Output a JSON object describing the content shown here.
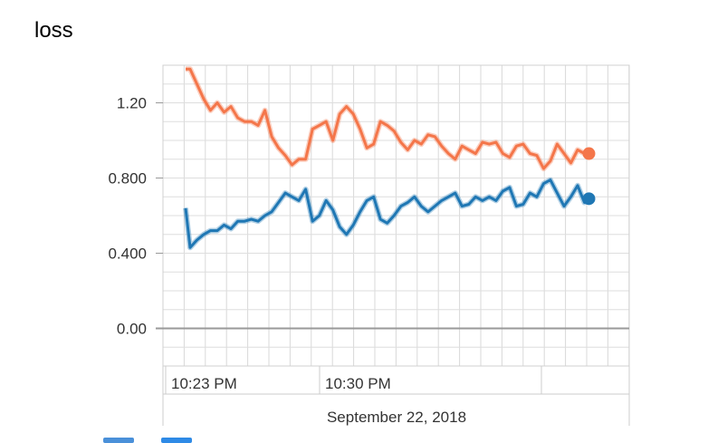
{
  "chart_data": {
    "type": "line",
    "title": "loss",
    "xlabel": "",
    "ylabel": "",
    "x_tick_labels": [
      "10:23 PM",
      "10:30 PM"
    ],
    "date_label": "September 22, 2018",
    "y_tick_labels": [
      "0.00",
      "0.400",
      "0.800",
      "1.20"
    ],
    "ylim": [
      -0.2,
      1.4
    ],
    "x_range_minutes": [
      0,
      18.5
    ],
    "x_unit": "minutes after 10:22 PM",
    "grid": true,
    "series": [
      {
        "color": "#f4764a",
        "x": [
          0,
          0.2,
          0.5,
          0.8,
          1.1,
          1.4,
          1.7,
          2.0,
          2.3,
          2.6,
          2.9,
          3.2,
          3.5,
          3.8,
          4.1,
          4.4,
          4.7,
          5.0,
          5.3,
          5.6,
          5.9,
          6.2,
          6.5,
          6.8,
          7.1,
          7.4,
          7.7,
          8.0,
          8.3,
          8.6,
          8.9,
          9.2,
          9.5,
          9.8,
          10.1,
          10.4,
          10.7,
          11.0,
          11.3,
          11.6,
          11.9,
          12.2,
          12.5,
          12.8,
          13.1,
          13.4,
          13.7,
          14.0,
          14.3,
          14.6,
          14.9,
          15.2,
          15.5,
          15.8,
          16.1,
          16.4,
          16.7,
          17.0,
          17.3,
          17.6,
          17.8
        ],
        "values": [
          1.38,
          1.38,
          1.3,
          1.22,
          1.16,
          1.2,
          1.15,
          1.18,
          1.12,
          1.1,
          1.1,
          1.08,
          1.16,
          1.02,
          0.96,
          0.92,
          0.87,
          0.9,
          0.9,
          1.06,
          1.08,
          1.1,
          1.0,
          1.14,
          1.18,
          1.14,
          1.06,
          0.96,
          0.98,
          1.1,
          1.08,
          1.05,
          0.99,
          0.95,
          1.0,
          0.98,
          1.03,
          1.02,
          0.97,
          0.93,
          0.9,
          0.97,
          0.95,
          0.93,
          0.99,
          0.98,
          0.99,
          0.93,
          0.91,
          0.97,
          0.98,
          0.93,
          0.92,
          0.85,
          0.89,
          0.98,
          0.93,
          0.88,
          0.95,
          0.93,
          0.93
        ]
      },
      {
        "color": "#1f77b4",
        "x": [
          0,
          0.2,
          0.5,
          0.8,
          1.1,
          1.4,
          1.7,
          2.0,
          2.3,
          2.6,
          2.9,
          3.2,
          3.5,
          3.8,
          4.1,
          4.4,
          4.7,
          5.0,
          5.3,
          5.6,
          5.9,
          6.2,
          6.5,
          6.8,
          7.1,
          7.4,
          7.7,
          8.0,
          8.3,
          8.6,
          8.9,
          9.2,
          9.5,
          9.8,
          10.1,
          10.4,
          10.7,
          11.0,
          11.3,
          11.6,
          11.9,
          12.2,
          12.5,
          12.8,
          13.1,
          13.4,
          13.7,
          14.0,
          14.3,
          14.6,
          14.9,
          15.2,
          15.5,
          15.8,
          16.1,
          16.4,
          16.7,
          17.0,
          17.3,
          17.6,
          17.8
        ],
        "values": [
          0.64,
          0.43,
          0.47,
          0.5,
          0.52,
          0.52,
          0.55,
          0.53,
          0.57,
          0.57,
          0.58,
          0.57,
          0.6,
          0.62,
          0.67,
          0.72,
          0.7,
          0.68,
          0.74,
          0.57,
          0.6,
          0.68,
          0.63,
          0.54,
          0.5,
          0.55,
          0.62,
          0.68,
          0.7,
          0.58,
          0.56,
          0.6,
          0.65,
          0.67,
          0.7,
          0.65,
          0.62,
          0.65,
          0.68,
          0.7,
          0.72,
          0.65,
          0.66,
          0.7,
          0.68,
          0.7,
          0.68,
          0.73,
          0.75,
          0.65,
          0.66,
          0.72,
          0.7,
          0.77,
          0.79,
          0.72,
          0.65,
          0.7,
          0.76,
          0.67,
          0.69
        ]
      }
    ]
  },
  "legend": {
    "a_color": "#4a90d9",
    "b_color": "#2e8ae6"
  }
}
